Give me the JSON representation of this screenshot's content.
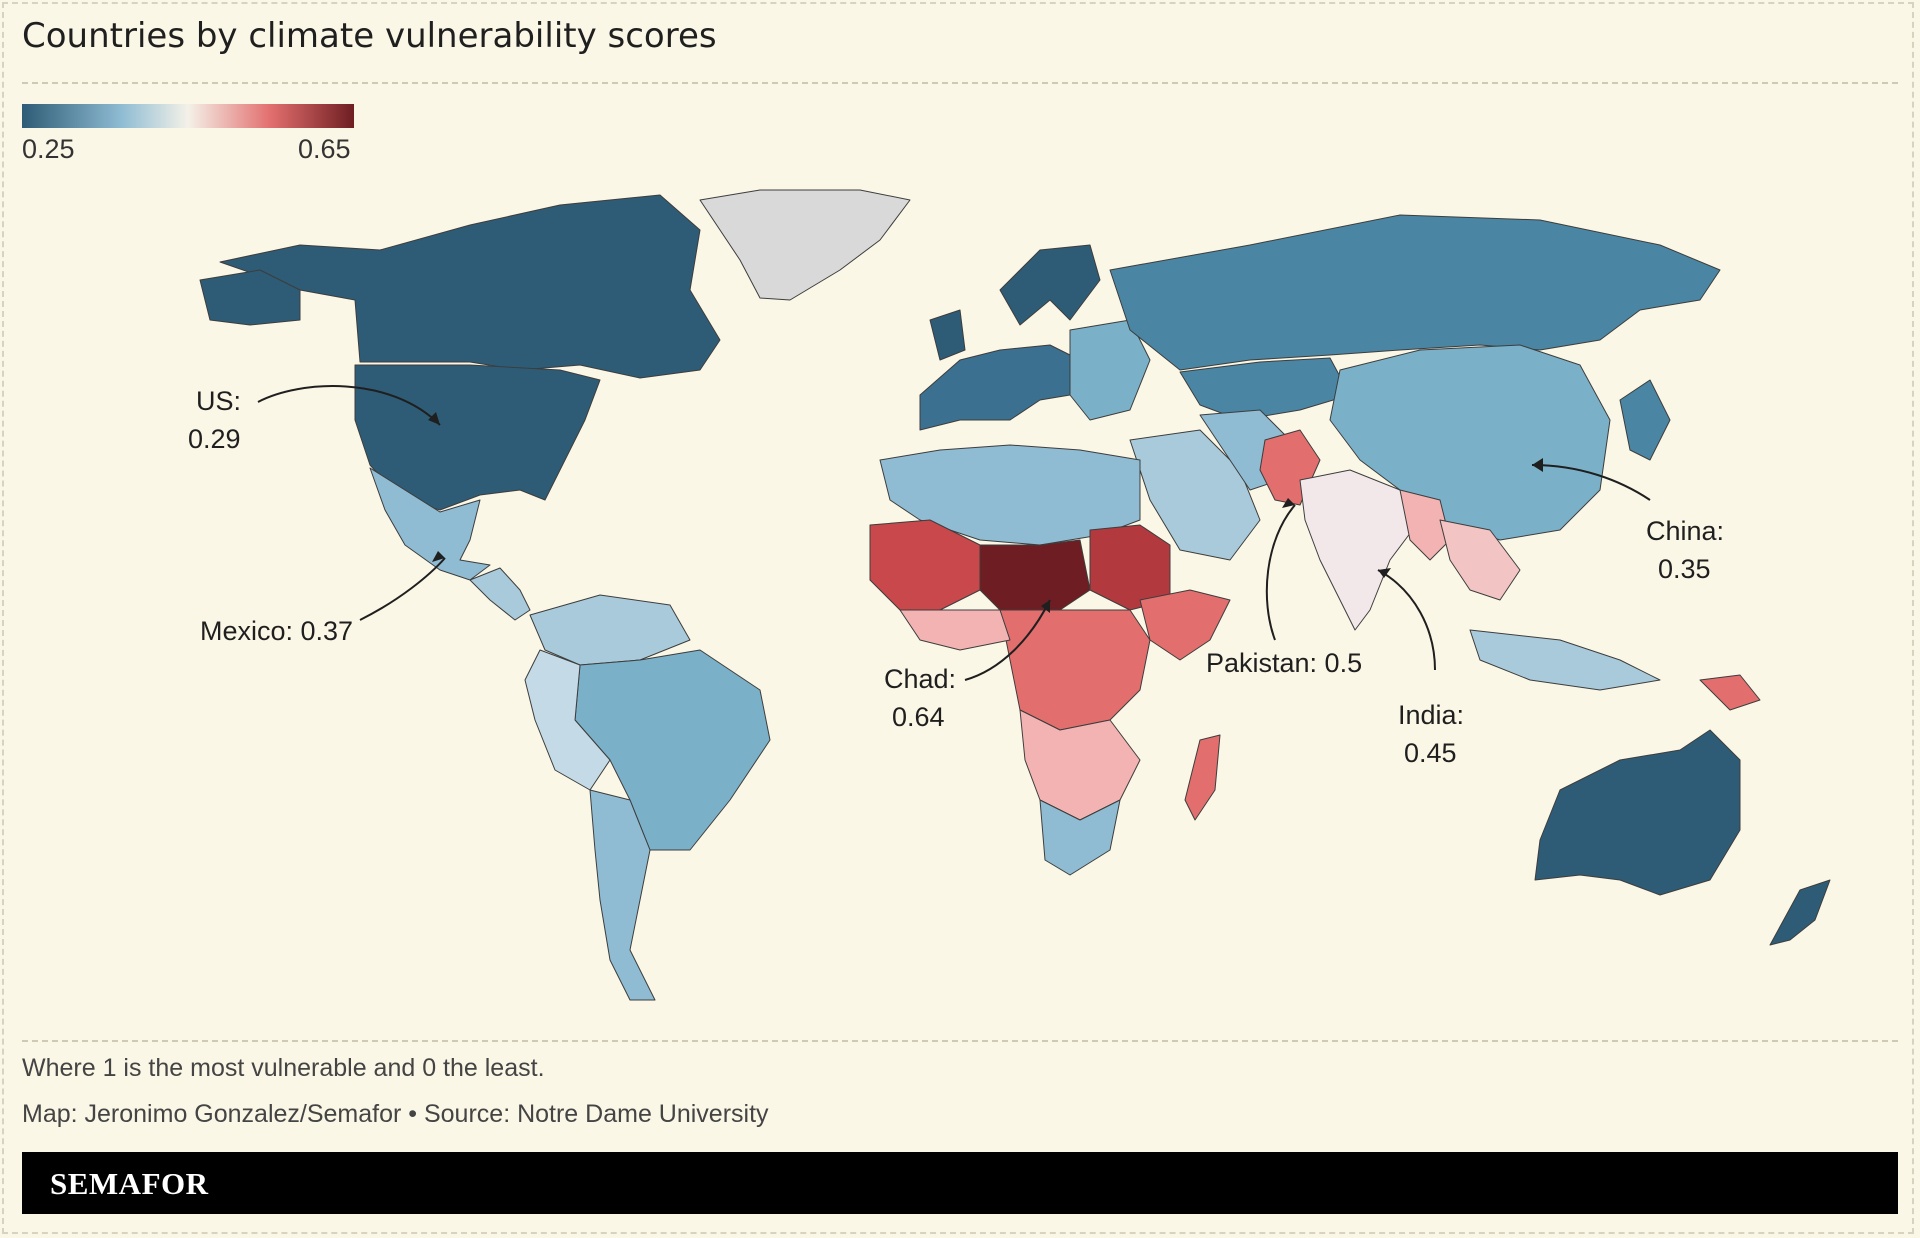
{
  "title": "Countries by climate vulnerability scores",
  "legend": {
    "min_label": "0.25",
    "max_label": "0.65",
    "colors": [
      "#2e5c76",
      "#4a86a3",
      "#8fbcd3",
      "#f4f1e8",
      "#f3b3b3",
      "#e26e6e",
      "#6e1e22"
    ]
  },
  "annotations": {
    "us": [
      "US:",
      "0.29"
    ],
    "mexico": "Mexico: 0.37",
    "chad": [
      "Chad:",
      "0.64"
    ],
    "pakistan": "Pakistan: 0.5",
    "india": [
      "India:",
      "0.45"
    ],
    "china": [
      "China:",
      "0.35"
    ]
  },
  "note": "Where 1 is the most vulnerable and 0 the least.",
  "credit": "Map: Jeronimo Gonzalez/Semafor • Source: Notre Dame University",
  "brand": "SEMAFOR",
  "colors": {
    "background": "#fbf7e6",
    "no_data": "#d9d9d9",
    "low": "#2e5c76",
    "mid_low": "#8fbcd3",
    "mid": "#f4f1e8",
    "mid_high": "#f3b3b3",
    "high": "#6e1e22"
  }
}
